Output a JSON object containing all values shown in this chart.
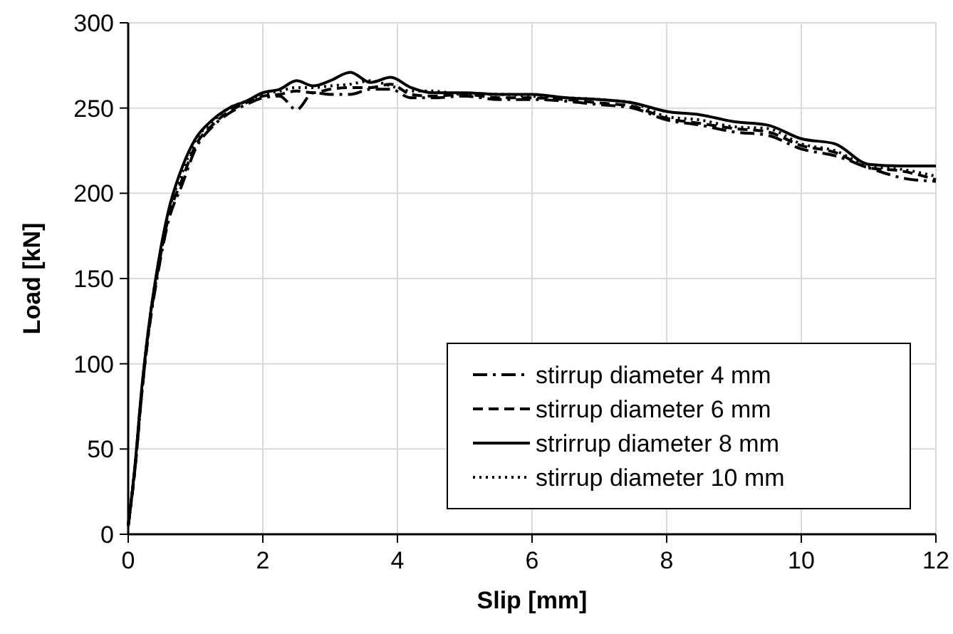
{
  "chart_data": {
    "type": "line",
    "xlabel": "Slip [mm]",
    "ylabel": "Load [kN]",
    "x": [
      0,
      0.1,
      0.2,
      0.3,
      0.45,
      0.6,
      0.8,
      1,
      1.25,
      1.5,
      1.75,
      2,
      2.25,
      2.5,
      2.75,
      3,
      3.3,
      3.6,
      3.9,
      4.2,
      4.5,
      5,
      5.5,
      6,
      6.5,
      7,
      7.5,
      8,
      8.5,
      9,
      9.5,
      10,
      10.5,
      11,
      11.5,
      12
    ],
    "xlim": [
      0,
      12
    ],
    "xticks": [
      0,
      2,
      4,
      6,
      8,
      10,
      12
    ],
    "ylim": [
      0,
      300
    ],
    "yticks": [
      0,
      50,
      100,
      150,
      200,
      250,
      300
    ],
    "grid": true,
    "legend": "bottom right",
    "marker": "none",
    "series": [
      {
        "name": "stirrup diameter 4 mm",
        "color": "#000000",
        "line_style": "dashdot",
        "values": [
          5,
          38,
          82,
          117,
          155,
          184,
          205,
          226,
          239,
          247,
          252,
          256,
          257,
          249,
          259,
          258,
          258,
          261,
          261,
          256,
          256,
          257,
          255,
          255,
          254,
          252,
          250,
          243,
          240,
          236,
          234,
          226,
          222,
          215,
          209,
          207
        ]
      },
      {
        "name": "stirrup diameter 6 mm",
        "color": "#000000",
        "line_style": "dashed",
        "values": [
          5,
          38,
          82,
          118,
          157,
          186,
          208,
          228,
          240,
          248,
          253,
          257,
          258,
          260,
          259,
          261,
          262,
          262,
          264,
          258,
          257,
          258,
          256,
          256,
          255,
          253,
          251,
          244,
          241,
          238,
          236,
          228,
          224,
          215,
          213,
          208
        ]
      },
      {
        "name": "strirrup diameter 8 mm",
        "color": "#000000",
        "line_style": "solid",
        "values": [
          5,
          40,
          85,
          120,
          160,
          190,
          215,
          232,
          243,
          250,
          254,
          259,
          261,
          266,
          263,
          266,
          271,
          265,
          268,
          262,
          259,
          259,
          258,
          258,
          256,
          255,
          253,
          248,
          246,
          242,
          240,
          232,
          229,
          217,
          216,
          216
        ]
      },
      {
        "name": "stirrup diameter 10 mm",
        "color": "#000000",
        "line_style": "dotted",
        "values": [
          5,
          40,
          84,
          120,
          159,
          189,
          212,
          231,
          242,
          250,
          254,
          258,
          260,
          262,
          262,
          263,
          264,
          266,
          263,
          260,
          260,
          258,
          258,
          257,
          256,
          255,
          253,
          245,
          243,
          239,
          238,
          229,
          225,
          216,
          214,
          210
        ]
      }
    ]
  }
}
